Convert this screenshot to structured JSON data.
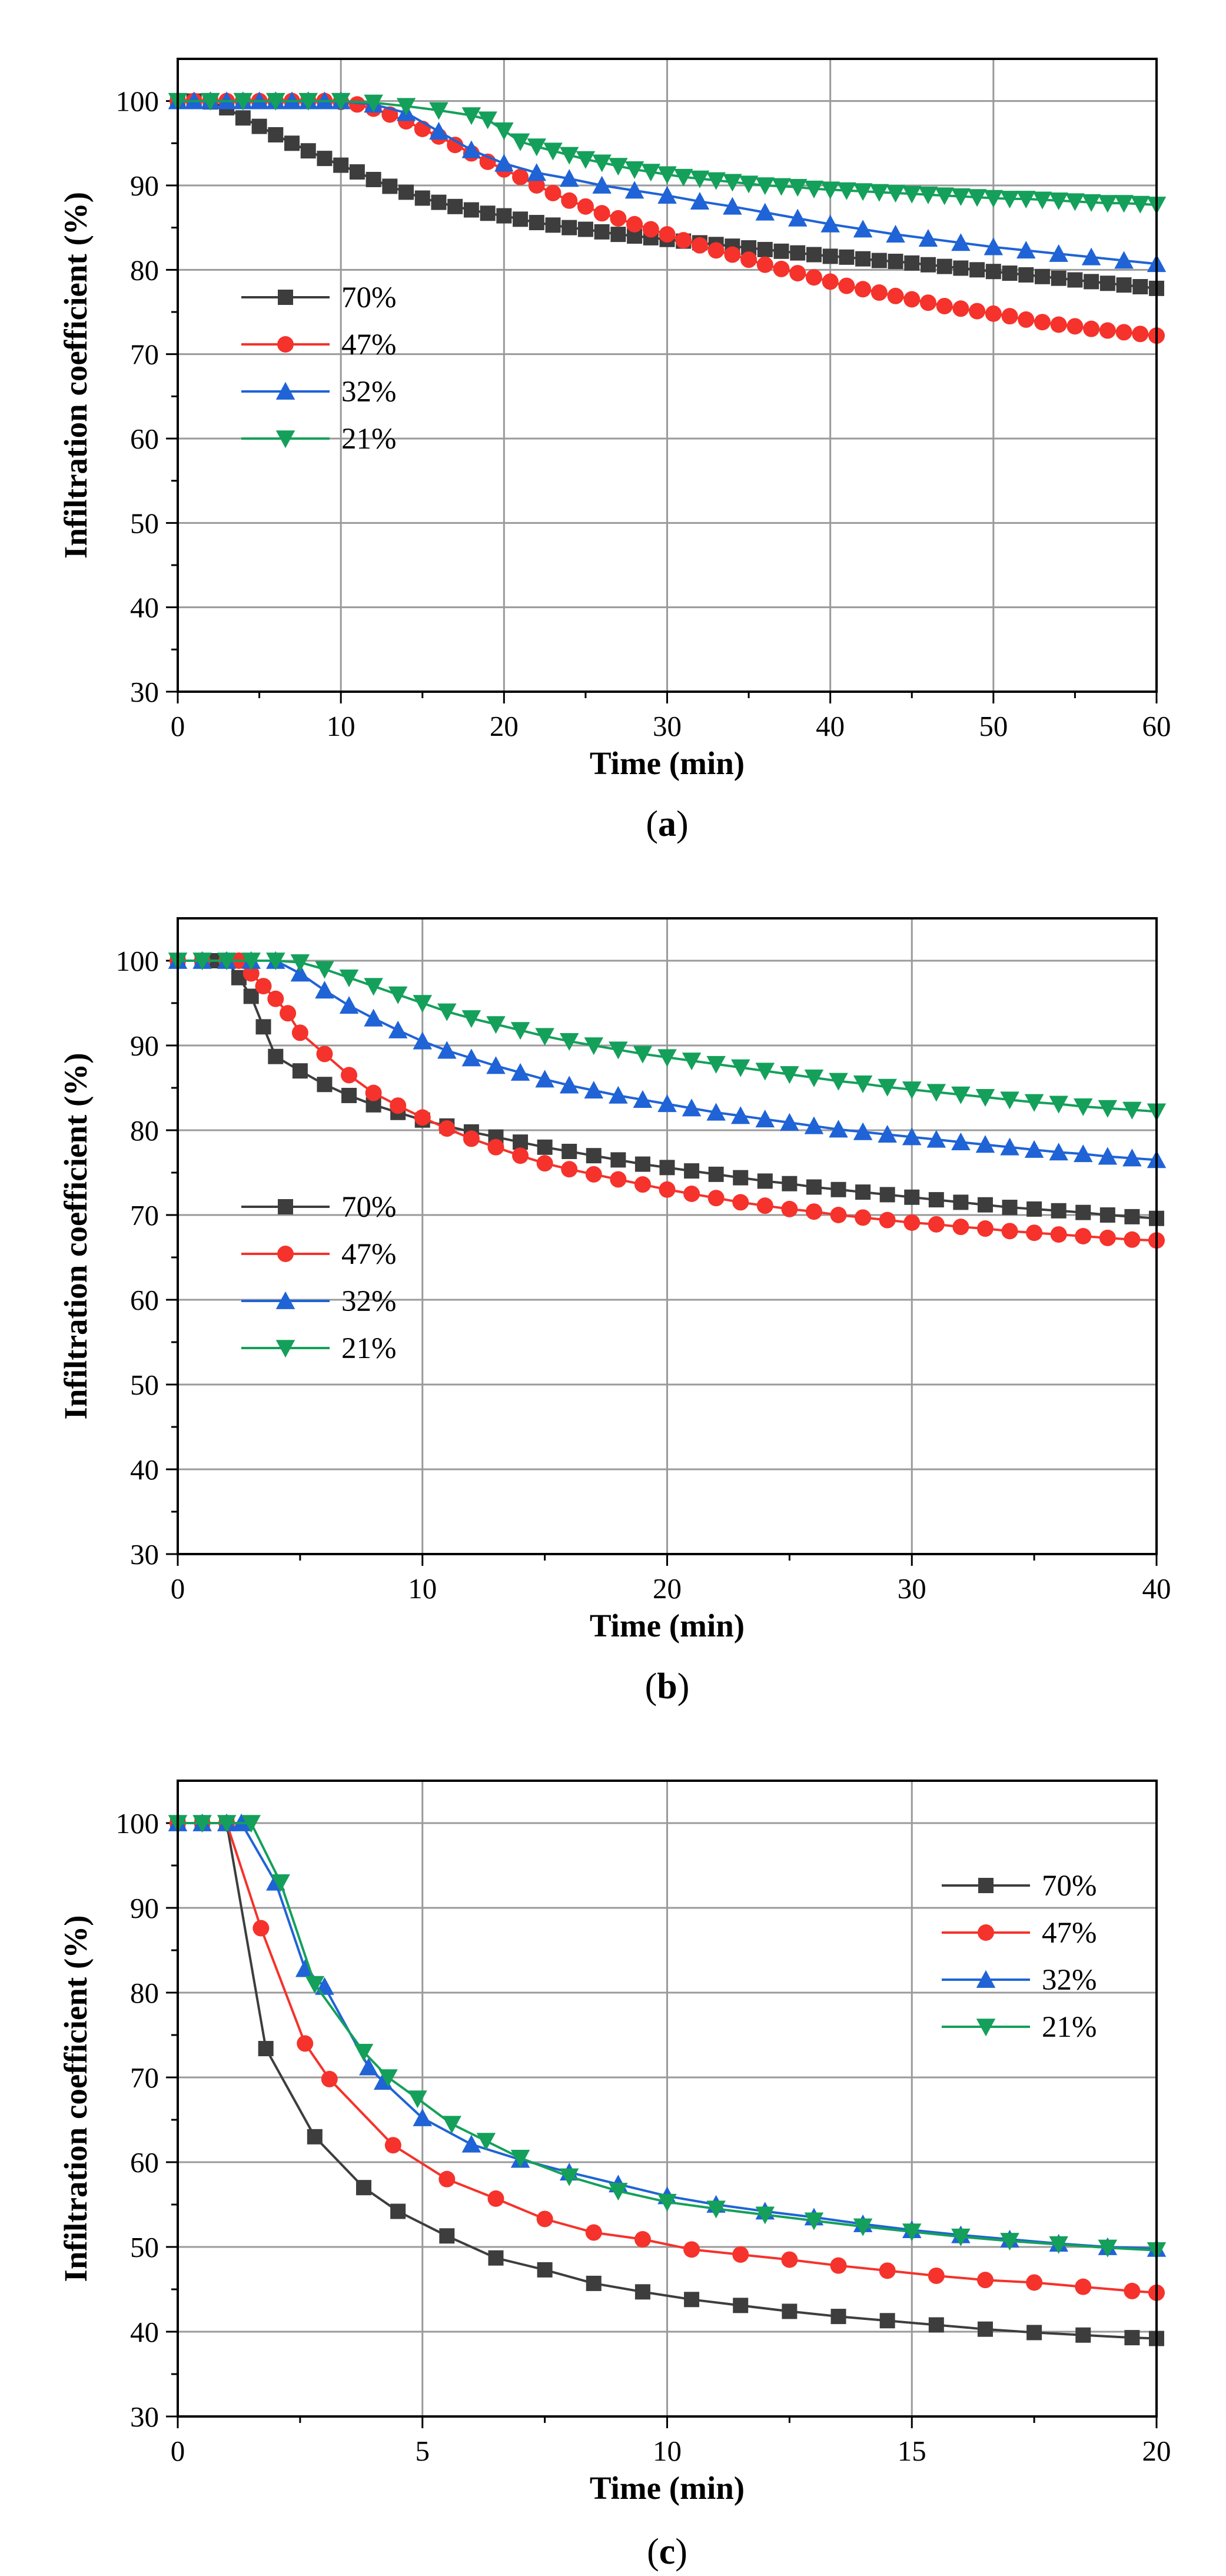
{
  "chart_data": [
    {
      "type": "line",
      "caption": "a",
      "xlabel": "Time (min)",
      "ylabel": "Infiltration coefficient (%)",
      "xlim": [
        0,
        60
      ],
      "ylim": [
        30,
        105
      ],
      "xticks": [
        0,
        10,
        20,
        30,
        40,
        50,
        60
      ],
      "yticks": [
        30,
        40,
        50,
        60,
        70,
        80,
        90,
        100
      ],
      "grid": true,
      "legend_position": "middle-left",
      "series": [
        {
          "name": "70%",
          "color": "#3d3d3d",
          "marker": "square",
          "x": [
            0,
            1,
            2,
            3,
            4,
            5,
            6,
            7,
            8,
            9,
            10,
            11,
            12,
            13,
            14,
            15,
            16,
            17,
            18,
            19,
            20,
            21,
            22,
            23,
            24,
            25,
            26,
            27,
            28,
            29,
            30,
            31,
            32,
            33,
            34,
            35,
            36,
            37,
            38,
            39,
            40,
            41,
            42,
            43,
            44,
            45,
            46,
            47,
            48,
            49,
            50,
            51,
            52,
            53,
            54,
            55,
            56,
            57,
            58,
            59,
            60
          ],
          "y": [
            100,
            100,
            99.9,
            99.2,
            98.0,
            97.0,
            96.0,
            95.0,
            94.1,
            93.2,
            92.4,
            91.6,
            90.7,
            89.9,
            89.2,
            88.5,
            88.0,
            87.5,
            87.1,
            86.7,
            86.4,
            86.0,
            85.6,
            85.3,
            85.0,
            84.8,
            84.5,
            84.2,
            84.0,
            83.8,
            83.6,
            83.4,
            83.2,
            83.0,
            82.8,
            82.6,
            82.4,
            82.2,
            82.0,
            81.8,
            81.6,
            81.5,
            81.3,
            81.1,
            81.0,
            80.8,
            80.6,
            80.4,
            80.2,
            80.0,
            79.8,
            79.6,
            79.4,
            79.2,
            79.0,
            78.8,
            78.6,
            78.4,
            78.2,
            78.0,
            77.8
          ]
        },
        {
          "name": "47%",
          "color": "#f5322b",
          "marker": "circle",
          "x": [
            0,
            1,
            2,
            3,
            4,
            5,
            6,
            7,
            8,
            9,
            10,
            11,
            12,
            13,
            14,
            15,
            16,
            17,
            18,
            19,
            20,
            21,
            22,
            23,
            24,
            25,
            26,
            27,
            28,
            29,
            30,
            31,
            32,
            33,
            34,
            35,
            36,
            37,
            38,
            39,
            40,
            41,
            42,
            43,
            44,
            45,
            46,
            47,
            48,
            49,
            50,
            51,
            52,
            53,
            54,
            55,
            56,
            57,
            58,
            59,
            60
          ],
          "y": [
            100,
            100,
            100,
            100,
            100,
            100,
            100,
            100,
            100,
            100,
            99.9,
            99.6,
            99.1,
            98.4,
            97.6,
            96.7,
            95.8,
            94.8,
            93.8,
            92.8,
            91.9,
            91.0,
            90.0,
            89.1,
            88.2,
            87.5,
            86.7,
            86.1,
            85.4,
            84.8,
            84.2,
            83.5,
            82.9,
            82.3,
            81.8,
            81.2,
            80.6,
            80.1,
            79.6,
            79.1,
            78.6,
            78.1,
            77.7,
            77.3,
            76.9,
            76.5,
            76.1,
            75.7,
            75.4,
            75.1,
            74.8,
            74.5,
            74.1,
            73.8,
            73.5,
            73.3,
            73.0,
            72.8,
            72.6,
            72.4,
            72.2
          ]
        },
        {
          "name": "32%",
          "color": "#1f63d6",
          "marker": "triangle-up",
          "x": [
            0,
            1,
            2,
            3,
            4,
            5,
            6,
            7,
            8,
            9,
            10,
            12,
            14,
            16,
            18,
            20,
            22,
            24,
            26,
            28,
            30,
            32,
            34,
            36,
            38,
            40,
            42,
            44,
            46,
            48,
            50,
            52,
            54,
            56,
            58,
            60
          ],
          "y": [
            100,
            100,
            100,
            100,
            100,
            100,
            100,
            100,
            100,
            100,
            100,
            99.6,
            98.6,
            96.4,
            94.2,
            92.6,
            91.5,
            90.8,
            90.0,
            89.4,
            88.8,
            88.1,
            87.5,
            86.8,
            86.1,
            85.4,
            84.8,
            84.2,
            83.7,
            83.2,
            82.7,
            82.3,
            81.9,
            81.5,
            81.1,
            80.7
          ]
        },
        {
          "name": "21%",
          "color": "#14a05a",
          "marker": "triangle-down",
          "x": [
            0,
            2,
            4,
            6,
            8,
            10,
            12,
            14,
            16,
            18,
            19,
            20,
            21,
            22,
            23,
            24,
            25,
            26,
            27,
            28,
            29,
            30,
            31,
            32,
            33,
            34,
            35,
            36,
            37,
            38,
            39,
            40,
            41,
            42,
            43,
            44,
            45,
            46,
            47,
            48,
            49,
            50,
            51,
            52,
            53,
            54,
            55,
            56,
            57,
            58,
            59,
            60
          ],
          "y": [
            100,
            100,
            100,
            100,
            100,
            100,
            99.8,
            99.4,
            98.9,
            98.3,
            97.8,
            96.5,
            95.2,
            94.6,
            94.1,
            93.6,
            93.1,
            92.7,
            92.3,
            91.9,
            91.6,
            91.3,
            91.0,
            90.8,
            90.6,
            90.4,
            90.2,
            90.0,
            89.9,
            89.8,
            89.6,
            89.5,
            89.4,
            89.3,
            89.2,
            89.1,
            89.0,
            88.9,
            88.8,
            88.7,
            88.6,
            88.5,
            88.4,
            88.4,
            88.3,
            88.2,
            88.1,
            88.0,
            87.9,
            87.9,
            87.8,
            87.7
          ]
        }
      ]
    },
    {
      "type": "line",
      "caption": "b",
      "xlabel": "Time (min)",
      "ylabel": "Infiltration coefficient (%)",
      "xlim": [
        0,
        40
      ],
      "ylim": [
        30,
        105
      ],
      "xticks": [
        0,
        10,
        20,
        30,
        40
      ],
      "yticks": [
        30,
        40,
        50,
        60,
        70,
        80,
        90,
        100
      ],
      "grid": true,
      "legend_position": "middle-left",
      "series": [
        {
          "name": "70%",
          "color": "#3d3d3d",
          "marker": "square",
          "x": [
            0,
            1,
            1.5,
            2,
            2.5,
            3,
            3.5,
            4,
            5,
            6,
            7,
            8,
            9,
            10,
            11,
            12,
            13,
            14,
            15,
            16,
            17,
            18,
            19,
            20,
            21,
            22,
            23,
            24,
            25,
            26,
            27,
            28,
            29,
            30,
            31,
            32,
            33,
            34,
            35,
            36,
            37,
            38,
            39,
            40
          ],
          "y": [
            100,
            100,
            100,
            100,
            98,
            95.8,
            92.2,
            88.7,
            87,
            85.4,
            84.1,
            83.0,
            82.1,
            81.2,
            80.5,
            79.8,
            79.2,
            78.6,
            78.0,
            77.5,
            77.0,
            76.5,
            76.0,
            75.6,
            75.2,
            74.8,
            74.4,
            74.0,
            73.7,
            73.3,
            73.0,
            72.7,
            72.4,
            72.1,
            71.8,
            71.5,
            71.2,
            70.9,
            70.7,
            70.5,
            70.3,
            70.0,
            69.8,
            69.6
          ]
        },
        {
          "name": "47%",
          "color": "#f5322b",
          "marker": "circle",
          "x": [
            0,
            1,
            2,
            2.5,
            3,
            3.5,
            4,
            4.5,
            5,
            6,
            7,
            8,
            9,
            10,
            11,
            12,
            13,
            14,
            15,
            16,
            17,
            18,
            19,
            20,
            21,
            22,
            23,
            24,
            25,
            26,
            27,
            28,
            29,
            30,
            31,
            32,
            33,
            34,
            35,
            36,
            37,
            38,
            39,
            40
          ],
          "y": [
            100,
            100,
            100,
            100,
            98.5,
            97,
            95.5,
            93.8,
            91.5,
            89,
            86.5,
            84.4,
            82.9,
            81.5,
            80.2,
            79.0,
            78.0,
            77.0,
            76.1,
            75.4,
            74.8,
            74.2,
            73.6,
            73.0,
            72.5,
            72.0,
            71.5,
            71.1,
            70.7,
            70.4,
            70.0,
            69.7,
            69.4,
            69.1,
            68.9,
            68.6,
            68.4,
            68.1,
            67.9,
            67.7,
            67.5,
            67.3,
            67.1,
            67.0
          ]
        },
        {
          "name": "32%",
          "color": "#1f63d6",
          "marker": "triangle-up",
          "x": [
            0,
            1,
            2,
            3,
            4,
            5,
            6,
            7,
            8,
            9,
            10,
            11,
            12,
            13,
            14,
            15,
            16,
            17,
            18,
            19,
            20,
            21,
            22,
            23,
            24,
            25,
            26,
            27,
            28,
            29,
            30,
            31,
            32,
            33,
            34,
            35,
            36,
            37,
            38,
            39,
            40
          ],
          "y": [
            100,
            100,
            100,
            100,
            100,
            98.5,
            96.5,
            94.7,
            93.2,
            91.8,
            90.5,
            89.4,
            88.5,
            87.6,
            86.8,
            86.0,
            85.3,
            84.7,
            84.1,
            83.6,
            83.1,
            82.6,
            82.1,
            81.7,
            81.3,
            80.9,
            80.5,
            80.1,
            79.8,
            79.5,
            79.2,
            78.9,
            78.6,
            78.3,
            78.0,
            77.7,
            77.4,
            77.2,
            76.9,
            76.7,
            76.5
          ]
        },
        {
          "name": "21%",
          "color": "#14a05a",
          "marker": "triangle-down",
          "x": [
            0,
            1,
            2,
            3,
            4,
            5,
            6,
            7,
            8,
            9,
            10,
            11,
            12,
            13,
            14,
            15,
            16,
            17,
            18,
            19,
            20,
            21,
            22,
            23,
            24,
            25,
            26,
            27,
            28,
            29,
            30,
            31,
            32,
            33,
            34,
            35,
            36,
            37,
            38,
            39,
            40
          ],
          "y": [
            100,
            100,
            100,
            100,
            100,
            99.8,
            99.0,
            98.0,
            97.0,
            96.0,
            95.0,
            94.0,
            93.2,
            92.5,
            91.8,
            91.1,
            90.5,
            90.0,
            89.5,
            89.0,
            88.6,
            88.2,
            87.8,
            87.4,
            87.0,
            86.6,
            86.2,
            85.8,
            85.5,
            85.1,
            84.8,
            84.5,
            84.2,
            83.9,
            83.6,
            83.3,
            83.1,
            82.8,
            82.6,
            82.4,
            82.2
          ]
        }
      ]
    },
    {
      "type": "line",
      "caption": "c",
      "xlabel": "Time (min)",
      "ylabel": "Infiltration coefficient (%)",
      "xlim": [
        0,
        20
      ],
      "ylim": [
        30,
        105
      ],
      "xticks": [
        0,
        5,
        10,
        15,
        20
      ],
      "yticks": [
        30,
        40,
        50,
        60,
        70,
        80,
        90,
        100
      ],
      "grid": true,
      "legend_position": "top-right",
      "series": [
        {
          "name": "70%",
          "color": "#3d3d3d",
          "marker": "square",
          "x": [
            0,
            0.5,
            1,
            1.8,
            2.8,
            3.8,
            4.5,
            5.5,
            6.5,
            7.5,
            8.5,
            9.5,
            10.5,
            11.5,
            12.5,
            13.5,
            14.5,
            15.5,
            16.5,
            17.5,
            18.5,
            19.5,
            20
          ],
          "y": [
            100,
            100,
            100,
            73.4,
            63,
            57,
            54.2,
            51.3,
            48.7,
            47.3,
            45.7,
            44.7,
            43.8,
            43.1,
            42.4,
            41.8,
            41.3,
            40.8,
            40.3,
            39.9,
            39.6,
            39.3,
            39.2
          ]
        },
        {
          "name": "47%",
          "color": "#f5322b",
          "marker": "circle",
          "x": [
            0,
            0.5,
            1,
            1.7,
            2.6,
            3.1,
            4.4,
            5.5,
            6.5,
            7.5,
            8.5,
            9.5,
            10.5,
            11.5,
            12.5,
            13.5,
            14.5,
            15.5,
            16.5,
            17.5,
            18.5,
            19.5,
            20
          ],
          "y": [
            100,
            100,
            100,
            87.6,
            74,
            69.8,
            62,
            58,
            55.7,
            53.3,
            51.7,
            50.9,
            49.7,
            49.1,
            48.5,
            47.8,
            47.2,
            46.6,
            46.1,
            45.8,
            45.3,
            44.8,
            44.6
          ]
        },
        {
          "name": "32%",
          "color": "#1f63d6",
          "marker": "triangle-up",
          "x": [
            0,
            0.5,
            1,
            1.3,
            2,
            2.6,
            3,
            3.9,
            4.2,
            5,
            6,
            7,
            8,
            9,
            10,
            11,
            12,
            13,
            14,
            15,
            16,
            17,
            18,
            19,
            20
          ],
          "y": [
            100,
            100,
            100,
            100,
            93,
            82.8,
            80.7,
            71.2,
            69.5,
            65.2,
            62.1,
            60.3,
            58.8,
            57.4,
            56.0,
            55.0,
            54.2,
            53.5,
            52.7,
            52.0,
            51.4,
            50.9,
            50.4,
            50.0,
            49.8
          ]
        },
        {
          "name": "21%",
          "color": "#14a05a",
          "marker": "triangle-down",
          "x": [
            0,
            0.5,
            1,
            1.5,
            2.1,
            2.8,
            3.8,
            4.3,
            4.9,
            5.6,
            6.3,
            7,
            8,
            9,
            10,
            11,
            12,
            13,
            14,
            15,
            16,
            17,
            18,
            19,
            20
          ],
          "y": [
            100,
            100,
            100,
            100,
            93,
            81,
            73,
            70,
            67.5,
            64.5,
            62.5,
            60.5,
            58.3,
            56.6,
            55.3,
            54.5,
            53.8,
            53.1,
            52.4,
            51.8,
            51.2,
            50.7,
            50.3,
            49.9,
            49.6
          ]
        }
      ]
    }
  ]
}
